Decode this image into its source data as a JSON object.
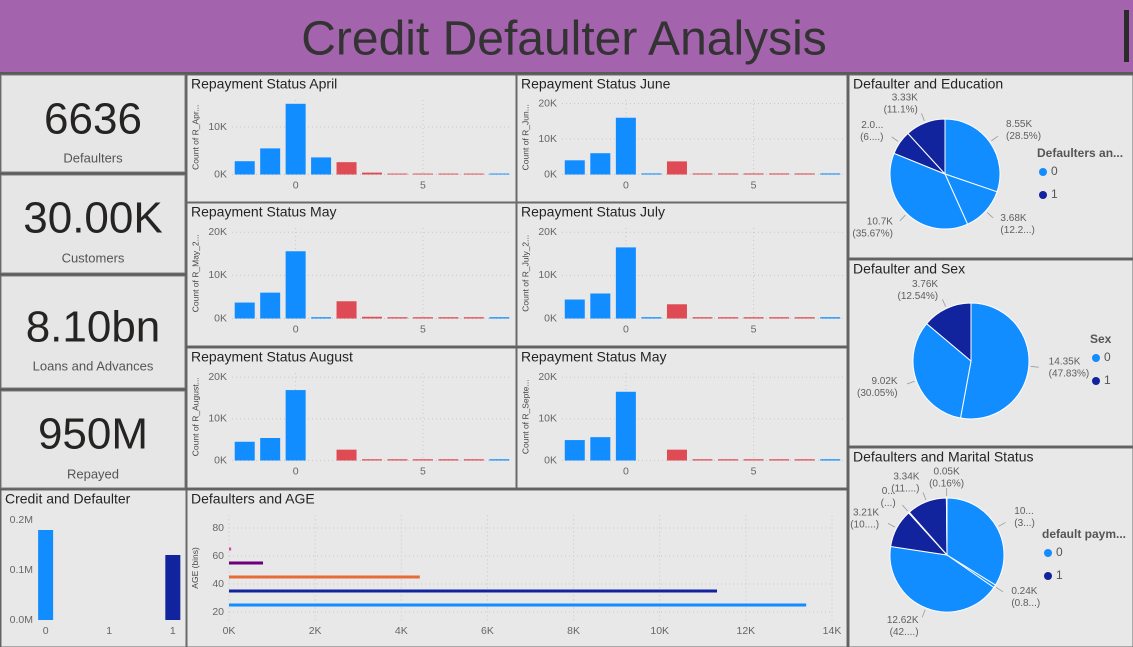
{
  "header": {
    "title": "Credit Defaulter Analysis"
  },
  "cards": [
    {
      "value": "6636",
      "label": "Defaulters"
    },
    {
      "value": "30.00K",
      "label": "Customers"
    },
    {
      "value": "8.10bn",
      "label": "Loans and Advances"
    },
    {
      "value": "950M",
      "label": "Repayed"
    }
  ],
  "chart_data": [
    {
      "type": "bar",
      "title": "Credit and Defaulter",
      "x": [
        0,
        1
      ],
      "values": [
        0.18,
        0.13
      ],
      "colors": [
        "#118dff",
        "#12239e"
      ],
      "xlim": [
        -0.06,
        1.08
      ],
      "xticks": [
        0,
        {
          "value": 0.5,
          "label": "1"
        },
        1
      ],
      "ylim": [
        0,
        0.2
      ],
      "yticks": [
        {
          "value": 0,
          "label": "0.0M"
        },
        {
          "value": 0.1,
          "label": "0.1M"
        },
        {
          "value": 0.2,
          "label": "0.2M"
        }
      ],
      "grid": false
    },
    {
      "type": "bar",
      "title": "Repayment Status April",
      "ylabel": "Count of R_Apr...",
      "x": [
        -2,
        -1,
        0,
        1,
        2,
        3,
        4,
        5,
        6,
        7,
        8
      ],
      "values": [
        2800,
        5500,
        14900,
        3600,
        2600,
        400,
        200,
        200,
        200,
        200,
        200
      ],
      "colors": [
        "#118dff",
        "#118dff",
        "#118dff",
        "#118dff",
        "#de4b55",
        "#de4b55",
        "#de4b55",
        "#de4b55",
        "#de4b55",
        "#de4b55",
        "#118dff"
      ],
      "xlim": [
        -2.5,
        8.5
      ],
      "xticks": [
        0,
        5
      ],
      "ylim": [
        0,
        15700
      ],
      "yticks": [
        {
          "value": 0,
          "label": "0K"
        },
        {
          "value": 10000,
          "label": "10K"
        }
      ],
      "grid": true
    },
    {
      "type": "bar",
      "title": "Repayment Status June",
      "ylabel": "Count of R_Jun...",
      "x": [
        -2,
        -1,
        0,
        1,
        2,
        3,
        4,
        5,
        6,
        7,
        8
      ],
      "values": [
        4000,
        6000,
        16000,
        300,
        3700,
        300,
        300,
        300,
        300,
        300,
        300
      ],
      "colors": [
        "#118dff",
        "#118dff",
        "#118dff",
        "#118dff",
        "#de4b55",
        "#de4b55",
        "#de4b55",
        "#de4b55",
        "#de4b55",
        "#de4b55",
        "#118dff"
      ],
      "xlim": [
        -2.5,
        8.5
      ],
      "xticks": [
        0,
        5
      ],
      "ylim": [
        0,
        21000
      ],
      "yticks": [
        {
          "value": 0,
          "label": "0K"
        },
        {
          "value": 10000,
          "label": "10K"
        },
        {
          "value": 20000,
          "label": "20K"
        }
      ],
      "grid": true
    },
    {
      "type": "bar",
      "title": "Repayment Status May",
      "ylabel": "Count of R_May_2...",
      "x": [
        -2,
        -1,
        0,
        1,
        2,
        3,
        4,
        5,
        6,
        7,
        8
      ],
      "values": [
        3700,
        6000,
        15600,
        300,
        4000,
        400,
        300,
        300,
        300,
        300,
        300
      ],
      "colors": [
        "#118dff",
        "#118dff",
        "#118dff",
        "#118dff",
        "#de4b55",
        "#de4b55",
        "#de4b55",
        "#de4b55",
        "#de4b55",
        "#de4b55",
        "#118dff"
      ],
      "xlim": [
        -2.5,
        8.5
      ],
      "xticks": [
        0,
        5
      ],
      "ylim": [
        0,
        21000
      ],
      "yticks": [
        {
          "value": 0,
          "label": "0K"
        },
        {
          "value": 10000,
          "label": "10K"
        },
        {
          "value": 20000,
          "label": "20K"
        }
      ],
      "grid": true
    },
    {
      "type": "bar",
      "title": "Repayment Status July",
      "ylabel": "Count of R_July_2...",
      "x": [
        -2,
        -1,
        0,
        1,
        2,
        3,
        4,
        5,
        6,
        7,
        8
      ],
      "values": [
        4400,
        5800,
        16500,
        300,
        3300,
        300,
        300,
        300,
        300,
        300,
        300
      ],
      "colors": [
        "#118dff",
        "#118dff",
        "#118dff",
        "#118dff",
        "#de4b55",
        "#de4b55",
        "#de4b55",
        "#de4b55",
        "#de4b55",
        "#de4b55",
        "#118dff"
      ],
      "xlim": [
        -2.5,
        8.5
      ],
      "xticks": [
        0,
        5
      ],
      "ylim": [
        0,
        21000
      ],
      "yticks": [
        {
          "value": 0,
          "label": "0K"
        },
        {
          "value": 10000,
          "label": "10K"
        },
        {
          "value": 20000,
          "label": "20K"
        }
      ],
      "grid": true
    },
    {
      "type": "bar",
      "title": "Repayment Status August",
      "ylabel": "Count of R_August...",
      "x": [
        -2,
        -1,
        0,
        1,
        2,
        3,
        4,
        5,
        6,
        7,
        8
      ],
      "values": [
        4500,
        5400,
        16900,
        0,
        2600,
        300,
        300,
        300,
        300,
        300,
        300
      ],
      "colors": [
        "#118dff",
        "#118dff",
        "#118dff",
        "#118dff",
        "#de4b55",
        "#de4b55",
        "#de4b55",
        "#de4b55",
        "#de4b55",
        "#de4b55",
        "#118dff"
      ],
      "xlim": [
        -2.5,
        8.5
      ],
      "xticks": [
        0,
        5
      ],
      "ylim": [
        0,
        21000
      ],
      "yticks": [
        {
          "value": 0,
          "label": "0K"
        },
        {
          "value": 10000,
          "label": "10K"
        },
        {
          "value": 20000,
          "label": "20K"
        }
      ],
      "grid": true
    },
    {
      "type": "bar",
      "title": "Repayment Status May",
      "ylabel": "Count of R_Septe...",
      "x": [
        -2,
        -1,
        0,
        1,
        2,
        3,
        4,
        5,
        6,
        7,
        8
      ],
      "values": [
        4900,
        5600,
        16500,
        0,
        2600,
        300,
        300,
        300,
        300,
        300,
        300
      ],
      "colors": [
        "#118dff",
        "#118dff",
        "#118dff",
        "#118dff",
        "#de4b55",
        "#de4b55",
        "#de4b55",
        "#de4b55",
        "#de4b55",
        "#de4b55",
        "#118dff"
      ],
      "xlim": [
        -2.5,
        8.5
      ],
      "xticks": [
        0,
        5
      ],
      "ylim": [
        0,
        21000
      ],
      "yticks": [
        {
          "value": 0,
          "label": "0K"
        },
        {
          "value": 10000,
          "label": "10K"
        },
        {
          "value": 20000,
          "label": "20K"
        }
      ],
      "grid": true
    },
    {
      "type": "bar",
      "orientation": "horizontal",
      "title": "Defaulters and AGE",
      "ylabel": "AGE (bins)",
      "y": [
        25,
        35,
        45,
        55,
        65
      ],
      "values": [
        13400,
        11330,
        4430,
        790,
        50
      ],
      "colors": [
        "#118dff",
        "#12239e",
        "#e66c37",
        "#6b007b",
        "#e044a7"
      ],
      "xlim": [
        0,
        14000
      ],
      "xticks": [
        {
          "value": 0,
          "label": "0K"
        },
        {
          "value": 2000,
          "label": "2K"
        },
        {
          "value": 4000,
          "label": "4K"
        },
        {
          "value": 6000,
          "label": "6K"
        },
        {
          "value": 8000,
          "label": "8K"
        },
        {
          "value": 10000,
          "label": "10K"
        },
        {
          "value": 12000,
          "label": "12K"
        },
        {
          "value": 14000,
          "label": "14K"
        }
      ],
      "ylim": [
        14,
        89
      ],
      "yticks": [
        20,
        40,
        60,
        80
      ],
      "grid": true
    },
    {
      "type": "pie",
      "title": "Defaulter and Education",
      "values": [
        8550,
        3680,
        10700,
        2000,
        3330
      ],
      "value_labels": [
        [
          "8.55K",
          "(28.5%)"
        ],
        [
          "3.68K",
          "(12.2...)"
        ],
        [
          "10.7K",
          "(35.67%)"
        ],
        [
          "2.0...",
          "(6....)"
        ],
        [
          "3.33K",
          "(11.1%)"
        ]
      ],
      "colors": [
        "#118dff",
        "#118dff",
        "#118dff",
        "#12239e",
        "#12239e"
      ],
      "legend": {
        "title": "Defaulters an...",
        "items": [
          {
            "label": "0",
            "color": "#118dff"
          },
          {
            "label": "1",
            "color": "#12239e"
          }
        ]
      }
    },
    {
      "type": "pie",
      "title": "Defaulter and Sex",
      "values": [
        14350,
        9020,
        3760
      ],
      "value_labels": [
        [
          "14.35K",
          "(47.83%)"
        ],
        [
          "9.02K",
          "(30.05%)"
        ],
        [
          "3.76K",
          "(12.54%)"
        ]
      ],
      "colors": [
        "#118dff",
        "#118dff",
        "#12239e"
      ],
      "legend": {
        "title": "Sex",
        "items": [
          {
            "label": "0",
            "color": "#118dff"
          },
          {
            "label": "1",
            "color": "#12239e"
          }
        ]
      }
    },
    {
      "type": "pie",
      "title": "Defaulters and Marital Status",
      "values": [
        10000,
        240,
        12620,
        3210,
        80,
        3340,
        50
      ],
      "value_labels": [
        [
          "10...",
          "(3...)"
        ],
        [
          "0.24K",
          "(0.8...)"
        ],
        [
          "12.62K",
          "(42....)"
        ],
        [
          "3.21K",
          "(10....)"
        ],
        [
          "0...",
          "(...)"
        ],
        [
          "3.34K",
          "(11....)"
        ],
        [
          "0.05K",
          "(0.16%)"
        ]
      ],
      "colors": [
        "#118dff",
        "#118dff",
        "#118dff",
        "#12239e",
        "#12239e",
        "#12239e",
        "#12239e"
      ],
      "legend": {
        "title": "default paym...",
        "items": [
          {
            "label": "0",
            "color": "#118dff"
          },
          {
            "label": "1",
            "color": "#12239e"
          }
        ]
      }
    }
  ]
}
